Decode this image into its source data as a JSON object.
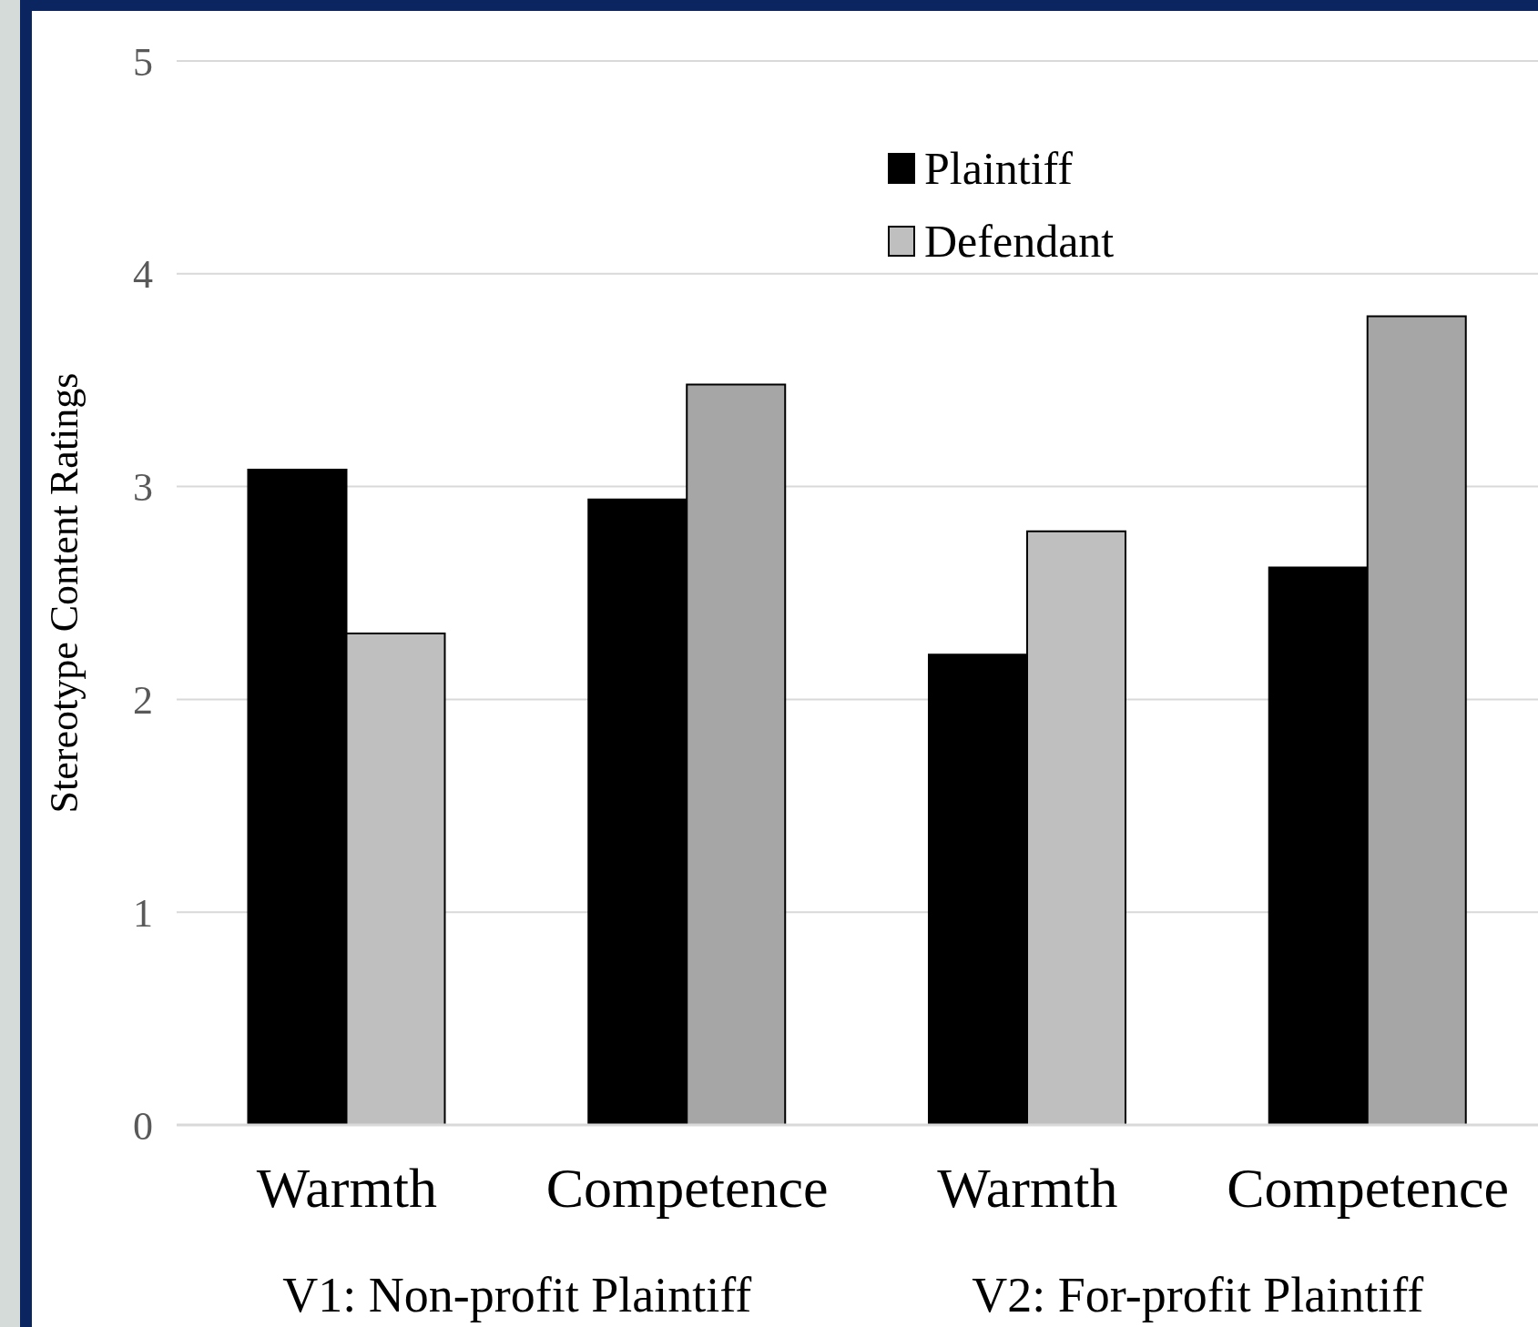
{
  "chart_data": {
    "type": "bar",
    "ylabel": "Stereotype Content Ratings",
    "categories": [
      "Warmth",
      "Competence",
      "Warmth",
      "Competence"
    ],
    "series": [
      {
        "name": "Plaintiff",
        "color": "#000000",
        "values": [
          3.08,
          2.94,
          2.21,
          2.62
        ]
      },
      {
        "name": "Defendant",
        "color": "#bfbfbf",
        "colors": [
          "#bfbfbf",
          "#a6a6a6",
          "#bfbfbf",
          "#a6a6a6"
        ],
        "values": [
          2.31,
          3.48,
          2.79,
          3.8
        ]
      }
    ],
    "ylim": [
      0,
      5
    ],
    "yticks": [
      0,
      1,
      2,
      3,
      4,
      5
    ],
    "grid": "y",
    "legend": "top right",
    "annotations": [
      "V1: Non-profit Plaintiff",
      "V2: For-profit Plaintiff"
    ]
  }
}
